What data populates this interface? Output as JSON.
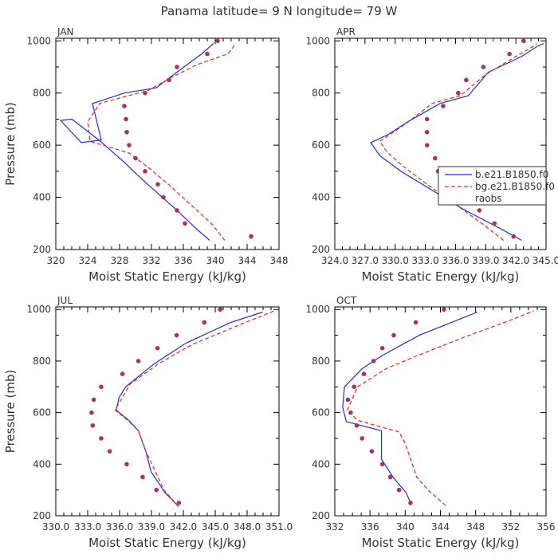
{
  "title": "Panama  latitude= 9 N longitude= 79 W",
  "colors": {
    "model1": "#1f2fd6",
    "model2": "#e8281e",
    "obs": "#a83262"
  },
  "legend": {
    "placement": "right-middle of APR panel",
    "entries": [
      "b.e21.B1850.f0",
      "bg.e21.B1850.f0",
      "raobs"
    ]
  },
  "chart_data": [
    {
      "type": "line",
      "panel": "JAN",
      "title": "JAN",
      "xlabel": "Moist Static Energy (kJ/kg)",
      "ylabel": "Pressure (mb)",
      "xlim": [
        320,
        348
      ],
      "ylim": [
        1010,
        200
      ],
      "xticks": [
        320,
        324,
        328,
        332,
        336,
        340,
        344,
        348
      ],
      "xtick_labels": [
        "320",
        "324",
        "328",
        "332",
        "336",
        "340",
        "344",
        "348"
      ],
      "yticks": [
        200,
        400,
        600,
        800,
        1000
      ],
      "grid": false,
      "series": [
        {
          "name": "b.e21.B1850.f0",
          "style": "solid",
          "color": "#1f2fd6",
          "points": [
            [
              339.3,
              235
            ],
            [
              337.8,
              275
            ],
            [
              335.2,
              350
            ],
            [
              333,
              410
            ],
            [
              330.8,
              470
            ],
            [
              328.4,
              540
            ],
            [
              325.4,
              620
            ],
            [
              322,
              700
            ],
            [
              320.6,
              695
            ],
            [
              323.2,
              610
            ],
            [
              325.7,
              620
            ],
            [
              324.6,
              760
            ],
            [
              328.6,
              800
            ],
            [
              332.6,
              820
            ],
            [
              335.2,
              880
            ],
            [
              338.3,
              950
            ],
            [
              339.8,
              990
            ]
          ]
        },
        {
          "name": "bg.e21.B1850.f0",
          "style": "dashed",
          "color": "#e8281e",
          "points": [
            [
              341.2,
              235
            ],
            [
              339.5,
              300
            ],
            [
              337,
              370
            ],
            [
              334.3,
              445
            ],
            [
              331.8,
              510
            ],
            [
              329.2,
              570
            ],
            [
              324.3,
              615
            ],
            [
              324,
              690
            ],
            [
              325.5,
              760
            ],
            [
              331.6,
              810
            ],
            [
              334.5,
              860
            ],
            [
              337.8,
              910
            ],
            [
              341.6,
              950
            ],
            [
              342.6,
              990
            ]
          ]
        },
        {
          "name": "raobs",
          "style": "scatter",
          "color": "#a83262",
          "points": [
            [
              344.5,
              250
            ],
            [
              336.2,
              300
            ],
            [
              335.2,
              350
            ],
            [
              333.5,
              400
            ],
            [
              332.8,
              450
            ],
            [
              331.2,
              500
            ],
            [
              330,
              550
            ],
            [
              329.2,
              600
            ],
            [
              328.9,
              650
            ],
            [
              328.8,
              700
            ],
            [
              328.6,
              750
            ],
            [
              331.2,
              800
            ],
            [
              334.2,
              850
            ],
            [
              335.2,
              900
            ],
            [
              339,
              950
            ],
            [
              340.3,
              1000
            ]
          ]
        }
      ]
    },
    {
      "type": "line",
      "panel": "APR",
      "title": "APR",
      "xlabel": "Moist Static Energy (kJ/kg)",
      "ylabel": "",
      "xlim": [
        324.03,
        345.03
      ],
      "ylim": [
        1010,
        200
      ],
      "xticks": [
        324.03,
        327.03,
        330.03,
        333.03,
        336.03,
        339.03,
        342.03,
        345.03
      ],
      "xtick_labels": [
        "324.0",
        "327.0",
        "330.0",
        "333.0",
        "336.0",
        "339.0",
        "342.0",
        "345.0"
      ],
      "yticks": [
        200,
        400,
        600,
        800,
        1000
      ],
      "grid": false,
      "series": [
        {
          "name": "b.e21.B1850.f0",
          "style": "solid",
          "color": "#1f2fd6",
          "points": [
            [
              342.6,
              235
            ],
            [
              340.5,
              280
            ],
            [
              337,
              350
            ],
            [
              333.8,
              425
            ],
            [
              330.6,
              500
            ],
            [
              328.5,
              560
            ],
            [
              327.6,
              610
            ],
            [
              329.3,
              640
            ],
            [
              331.3,
              690
            ],
            [
              334.5,
              760
            ],
            [
              337.3,
              790
            ],
            [
              339.3,
              880
            ],
            [
              342.6,
              940
            ],
            [
              344.2,
              980
            ],
            [
              344.8,
              990
            ]
          ]
        },
        {
          "name": "bg.e21.B1850.f0",
          "style": "dashed",
          "color": "#e8281e",
          "points": [
            [
              340.8,
              235
            ],
            [
              339,
              290
            ],
            [
              336.5,
              360
            ],
            [
              333.2,
              450
            ],
            [
              330.8,
              520
            ],
            [
              329.2,
              575
            ],
            [
              328.5,
              615
            ],
            [
              329.5,
              640
            ],
            [
              331,
              680
            ],
            [
              333.7,
              760
            ],
            [
              336.5,
              790
            ],
            [
              339,
              870
            ],
            [
              341.8,
              935
            ],
            [
              343.8,
              980
            ],
            [
              344.1,
              990
            ]
          ]
        },
        {
          "name": "raobs",
          "style": "scatter",
          "color": "#a83262",
          "points": [
            [
              341.8,
              250
            ],
            [
              339.9,
              300
            ],
            [
              338.4,
              350
            ],
            [
              337.3,
              400
            ],
            [
              335.2,
              450
            ],
            [
              334.3,
              500
            ],
            [
              334,
              550
            ],
            [
              333.2,
              600
            ],
            [
              333.2,
              650
            ],
            [
              333.2,
              700
            ],
            [
              334.8,
              750
            ],
            [
              336.3,
              800
            ],
            [
              337.1,
              850
            ],
            [
              338.8,
              900
            ],
            [
              341.4,
              950
            ],
            [
              342.8,
              1000
            ]
          ]
        }
      ]
    },
    {
      "type": "line",
      "panel": "JUL",
      "title": "JUL",
      "xlabel": "Moist Static Energy (kJ/kg)",
      "ylabel": "Pressure (mb)",
      "xlim": [
        330.03,
        351.03
      ],
      "ylim": [
        1010,
        200
      ],
      "xticks": [
        330.03,
        333.03,
        336.03,
        339.03,
        342.03,
        345.03,
        348.03,
        351.03
      ],
      "xtick_labels": [
        "330.0",
        "333.0",
        "336.0",
        "339.0",
        "342.0",
        "345.0",
        "348.0",
        "351.0"
      ],
      "yticks": [
        200,
        400,
        600,
        800,
        1000
      ],
      "grid": false,
      "series": [
        {
          "name": "b.e21.B1850.f0",
          "style": "solid",
          "color": "#1f2fd6",
          "points": [
            [
              341.6,
              235
            ],
            [
              340.3,
              290
            ],
            [
              339,
              370
            ],
            [
              338.5,
              450
            ],
            [
              337.8,
              530
            ],
            [
              336.9,
              570
            ],
            [
              335.7,
              610
            ],
            [
              336,
              660
            ],
            [
              336.6,
              700
            ],
            [
              339.3,
              790
            ],
            [
              342.3,
              870
            ],
            [
              346.5,
              950
            ],
            [
              349.5,
              990
            ]
          ]
        },
        {
          "name": "bg.e21.B1850.f0",
          "style": "dashed",
          "color": "#e8281e",
          "points": [
            [
              341.6,
              235
            ],
            [
              340.2,
              300
            ],
            [
              339.3,
              380
            ],
            [
              338.5,
              450
            ],
            [
              337.8,
              530
            ],
            [
              336.8,
              570
            ],
            [
              335.6,
              610
            ],
            [
              336.3,
              660
            ],
            [
              337,
              710
            ],
            [
              339.7,
              790
            ],
            [
              342.9,
              865
            ],
            [
              347.3,
              940
            ],
            [
              350.6,
              995
            ]
          ]
        },
        {
          "name": "raobs",
          "style": "scatter",
          "color": "#a83262",
          "points": [
            [
              341.6,
              250
            ],
            [
              339.5,
              300
            ],
            [
              338.2,
              350
            ],
            [
              336.7,
              400
            ],
            [
              335.1,
              450
            ],
            [
              334.3,
              500
            ],
            [
              333.5,
              550
            ],
            [
              333.4,
              600
            ],
            [
              333.6,
              650
            ],
            [
              334.3,
              700
            ],
            [
              336.3,
              750
            ],
            [
              337.8,
              800
            ],
            [
              339.6,
              850
            ],
            [
              341.4,
              900
            ],
            [
              344,
              950
            ],
            [
              345.5,
              1000
            ]
          ]
        }
      ]
    },
    {
      "type": "line",
      "panel": "OCT",
      "title": "OCT",
      "xlabel": "Moist Static Energy (kJ/kg)",
      "ylabel": "",
      "xlim": [
        332,
        356
      ],
      "ylim": [
        1010,
        200
      ],
      "xticks": [
        332,
        336,
        340,
        344,
        348,
        352,
        356
      ],
      "xtick_labels": [
        "332",
        "336",
        "340",
        "344",
        "348",
        "352",
        "356"
      ],
      "yticks": [
        200,
        400,
        600,
        800,
        1000
      ],
      "grid": false,
      "series": [
        {
          "name": "b.e21.B1850.f0",
          "style": "solid",
          "color": "#1f2fd6",
          "points": [
            [
              340.6,
              250
            ],
            [
              340.1,
              290
            ],
            [
              338.6,
              350
            ],
            [
              337.3,
              420
            ],
            [
              337.3,
              530
            ],
            [
              333.3,
              565
            ],
            [
              332.9,
              620
            ],
            [
              333.1,
              700
            ],
            [
              335.1,
              770
            ],
            [
              337.3,
              820
            ],
            [
              341.6,
              900
            ],
            [
              346,
              960
            ],
            [
              348.2,
              990
            ]
          ]
        },
        {
          "name": "bg.e21.B1850.f0",
          "style": "dashed",
          "color": "#e8281e",
          "points": [
            [
              344.6,
              240
            ],
            [
              342.6,
              300
            ],
            [
              341.3,
              350
            ],
            [
              340.8,
              400
            ],
            [
              340,
              480
            ],
            [
              339.3,
              525
            ],
            [
              334.6,
              570
            ],
            [
              333.4,
              610
            ],
            [
              334.6,
              700
            ],
            [
              337.8,
              770
            ],
            [
              341.3,
              820
            ],
            [
              346.5,
              890
            ],
            [
              351.7,
              955
            ],
            [
              354.6,
              995
            ]
          ]
        },
        {
          "name": "raobs",
          "style": "scatter",
          "color": "#a83262",
          "points": [
            [
              340.6,
              250
            ],
            [
              339.3,
              300
            ],
            [
              338.3,
              350
            ],
            [
              337.4,
              400
            ],
            [
              336.2,
              450
            ],
            [
              335.1,
              500
            ],
            [
              334.5,
              550
            ],
            [
              333.8,
              600
            ],
            [
              333.5,
              650
            ],
            [
              334.2,
              700
            ],
            [
              335.3,
              750
            ],
            [
              336.4,
              800
            ],
            [
              337.4,
              850
            ],
            [
              338.7,
              900
            ],
            [
              341.2,
              950
            ],
            [
              344.4,
              1000
            ]
          ]
        }
      ]
    }
  ]
}
